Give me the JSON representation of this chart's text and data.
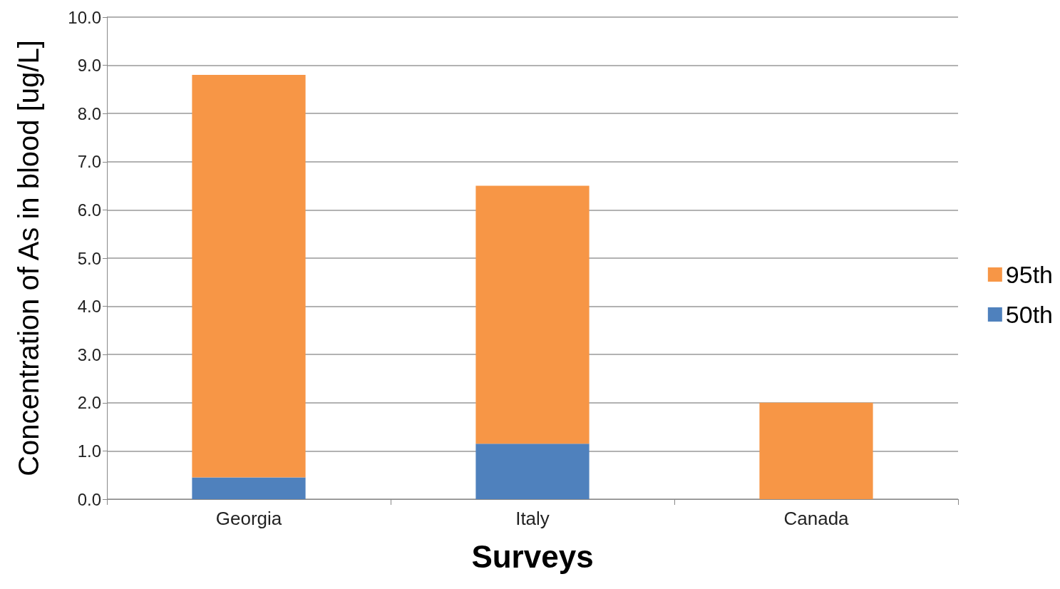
{
  "chart_data": {
    "type": "bar",
    "stacked": true,
    "xlabel": "Surveys",
    "ylabel": "Concentration of As in blood [ug/L]",
    "categories": [
      "Georgia",
      "Italy",
      "Canada"
    ],
    "series": [
      {
        "name": "50th",
        "color": "#4f81bd",
        "values": [
          0.45,
          1.15,
          null
        ]
      },
      {
        "name": "95th",
        "color": "#f79646",
        "values": [
          8.35,
          5.35,
          2.0
        ]
      }
    ],
    "ylim": [
      0,
      10
    ],
    "yticks": [
      {
        "value": 0,
        "label": "0.0"
      },
      {
        "value": 1,
        "label": "1.0"
      },
      {
        "value": 2,
        "label": "2.0"
      },
      {
        "value": 3,
        "label": "3.0"
      },
      {
        "value": 4,
        "label": "4.0"
      },
      {
        "value": 5,
        "label": "5.0"
      },
      {
        "value": 6,
        "label": "6.0"
      },
      {
        "value": 7,
        "label": "7.0"
      },
      {
        "value": 8,
        "label": "8.0"
      },
      {
        "value": 9,
        "label": "9.0"
      },
      {
        "value": 10,
        "label": "10.0"
      }
    ],
    "grid": "y",
    "legend": "right"
  }
}
